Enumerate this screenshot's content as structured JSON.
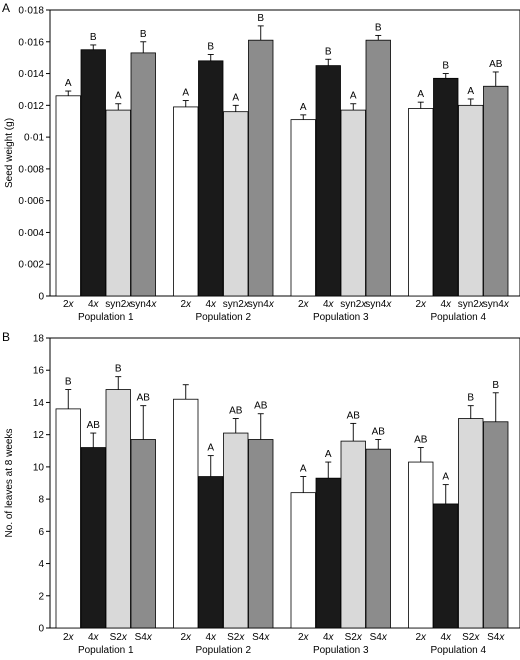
{
  "colors": {
    "2x": "#ffffff",
    "4x": "#1a1a1a",
    "syn2x": "#d9d9d9",
    "syn4x": "#8c8c8c",
    "stroke": "#000000"
  },
  "chart_data": [
    {
      "panel_label": "A",
      "type": "bar",
      "ylabel": "Seed weight (g)",
      "ylim": [
        0,
        0.018
      ],
      "yticks": [
        "0",
        "0·002",
        "0·004",
        "0·006",
        "0·008",
        "0·01",
        "0·012",
        "0·014",
        "0·016",
        "0·018"
      ],
      "groups": [
        "Population 1",
        "Population 2",
        "Population 3",
        "Population 4"
      ],
      "bar_labels": [
        [
          "2x",
          "4x",
          "syn2x",
          "syn4x"
        ],
        [
          "2x",
          "4x",
          "syn2x",
          "syn4x"
        ],
        [
          "2x",
          "4x",
          "syn2x",
          "syn4x"
        ],
        [
          "2x",
          "4x",
          "syn2x",
          "syn4x"
        ]
      ],
      "bar_colors": [
        "2x",
        "4x",
        "syn2x",
        "syn4x"
      ],
      "values": [
        [
          0.0126,
          0.0155,
          0.0117,
          0.0153
        ],
        [
          0.0119,
          0.0148,
          0.0116,
          0.0161
        ],
        [
          0.0111,
          0.0145,
          0.0117,
          0.0161
        ],
        [
          0.0118,
          0.0137,
          0.012,
          0.0132
        ]
      ],
      "errors": [
        [
          0.0003,
          0.0003,
          0.0004,
          0.0007
        ],
        [
          0.0004,
          0.0004,
          0.0004,
          0.0009
        ],
        [
          0.0003,
          0.0004,
          0.0004,
          0.0003
        ],
        [
          0.0004,
          0.0003,
          0.0004,
          0.0009
        ]
      ],
      "letters": [
        [
          "A",
          "B",
          "A",
          "B"
        ],
        [
          "A",
          "B",
          "A",
          "B"
        ],
        [
          "A",
          "B",
          "A",
          "B"
        ],
        [
          "A",
          "B",
          "A",
          "AB"
        ]
      ]
    },
    {
      "panel_label": "B",
      "type": "bar",
      "ylabel": "No. of leaves at 8 weeks",
      "ylim": [
        0,
        18
      ],
      "yticks": [
        "0",
        "2",
        "4",
        "6",
        "8",
        "10",
        "12",
        "14",
        "16",
        "18"
      ],
      "groups": [
        "Population 1",
        "Population 2",
        "Population 3",
        "Population 4"
      ],
      "bar_labels": [
        [
          "2x",
          "4x",
          "S2x",
          "S4x"
        ],
        [
          "2x",
          "4x",
          "S2x",
          "S4x"
        ],
        [
          "2x",
          "4x",
          "S2x",
          "S4x"
        ],
        [
          "2x",
          "4x",
          "S2x",
          "S4x"
        ]
      ],
      "bar_colors": [
        "2x",
        "4x",
        "syn2x",
        "syn4x"
      ],
      "values": [
        [
          13.6,
          11.2,
          14.8,
          11.7
        ],
        [
          14.2,
          9.4,
          12.1,
          11.7
        ],
        [
          8.4,
          9.3,
          11.6,
          11.1
        ],
        [
          10.3,
          7.7,
          13.0,
          12.8
        ]
      ],
      "errors": [
        [
          1.2,
          0.9,
          0.8,
          2.1
        ],
        [
          0.9,
          1.3,
          0.9,
          1.6
        ],
        [
          1.0,
          1.0,
          1.1,
          0.6
        ],
        [
          0.9,
          1.2,
          0.8,
          1.8
        ]
      ],
      "letters": [
        [
          "B",
          "AB",
          "B",
          "AB"
        ],
        [
          "",
          "A",
          "AB",
          "AB"
        ],
        [
          "A",
          "A",
          "AB",
          "AB"
        ],
        [
          "AB",
          "A",
          "B",
          "B"
        ]
      ]
    }
  ]
}
